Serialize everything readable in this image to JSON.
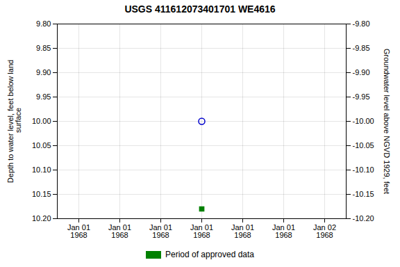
{
  "chart_data": {
    "type": "scatter",
    "title": "USGS 411612073401701 WE4616",
    "ylabel": "Depth to water level, feet below land\n surface",
    "y2label": "Groundwater level above NGVD 1929, feet",
    "categories": [
      "Jan 01\n1968",
      "Jan 01\n1968",
      "Jan 01\n1968",
      "Jan 01\n1968",
      "Jan 01\n1968",
      "Jan 01\n1968",
      "Jan 02\n1968"
    ],
    "series": [
      {
        "color": "#0000cc",
        "marker": "circle",
        "values": [
          null,
          null,
          null,
          10.0,
          null,
          null,
          null
        ]
      },
      {
        "name": "Period of approved data",
        "color": "#008000",
        "marker": "square",
        "values": [
          null,
          null,
          null,
          10.18,
          null,
          null,
          null
        ]
      }
    ],
    "ylim": [
      10.2,
      9.8
    ],
    "yticks": [
      {
        "value": 9.8,
        "label": "9.80"
      },
      {
        "value": 9.85,
        "label": "9.85"
      },
      {
        "value": 9.9,
        "label": "9.90"
      },
      {
        "value": 9.95,
        "label": "9.95"
      },
      {
        "value": 10.0,
        "label": "10.00"
      },
      {
        "value": 10.05,
        "label": "10.05"
      },
      {
        "value": 10.1,
        "label": "10.10"
      },
      {
        "value": 10.15,
        "label": "10.15"
      },
      {
        "value": 10.2,
        "label": "10.20"
      }
    ],
    "y2lim": [
      -10.2,
      -9.8
    ],
    "y2ticks": [
      {
        "value": -9.8,
        "label": "-9.80"
      },
      {
        "value": -9.85,
        "label": "-9.85"
      },
      {
        "value": -9.9,
        "label": "-9.90"
      },
      {
        "value": -9.95,
        "label": "-9.95"
      },
      {
        "value": -10.0,
        "label": "-10.00"
      },
      {
        "value": -10.05,
        "label": "-10.05"
      },
      {
        "value": -10.1,
        "label": "-10.10"
      },
      {
        "value": -10.15,
        "label": "-10.15"
      },
      {
        "value": -10.2,
        "label": "-10.20"
      }
    ],
    "grid": true,
    "legend": "bottom"
  }
}
